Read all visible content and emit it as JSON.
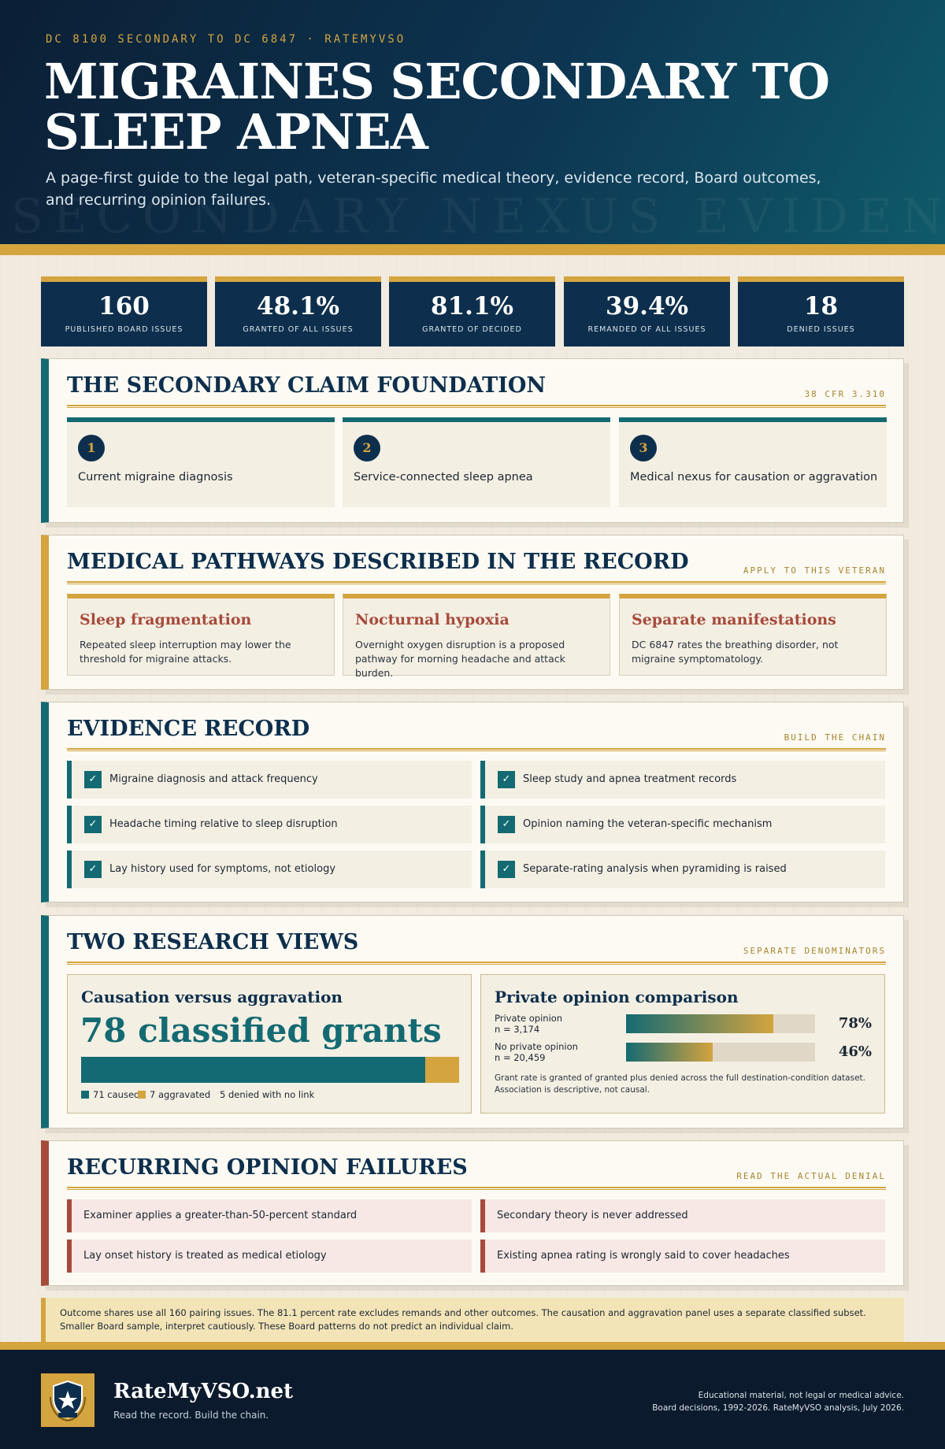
{
  "hero": {
    "kicker": "DC 8100 SECONDARY TO DC 6847 · RATEMYVSO",
    "title": "MIGRAINES SECONDARY TO SLEEP APNEA",
    "subtitle": "A page-first guide to the legal path, veteran-specific medical theory, evidence record, Board outcomes, and recurring opinion failures.",
    "watermark": "SECONDARY NEXUS EVIDENCE"
  },
  "stats": [
    {
      "value": "160",
      "label": "PUBLISHED BOARD ISSUES"
    },
    {
      "value": "48.1%",
      "label": "GRANTED OF ALL ISSUES"
    },
    {
      "value": "81.1%",
      "label": "GRANTED OF DECIDED"
    },
    {
      "value": "39.4%",
      "label": "REMANDED OF ALL ISSUES"
    },
    {
      "value": "18",
      "label": "DENIED ISSUES"
    }
  ],
  "foundation": {
    "title": "THE SECONDARY CLAIM FOUNDATION",
    "tag": "38 CFR 3.310",
    "items": [
      {
        "num": "1",
        "text": "Current migraine diagnosis"
      },
      {
        "num": "2",
        "text": "Service-connected sleep apnea"
      },
      {
        "num": "3",
        "text": "Medical nexus for causation or aggravation"
      }
    ]
  },
  "pathways": {
    "title": "MEDICAL PATHWAYS DESCRIBED IN THE RECORD",
    "tag": "APPLY TO THIS VETERAN",
    "items": [
      {
        "title": "Sleep fragmentation",
        "desc": "Repeated sleep interruption may lower the threshold for migraine attacks."
      },
      {
        "title": "Nocturnal hypoxia",
        "desc": "Overnight oxygen disruption is a proposed pathway for morning headache and attack burden."
      },
      {
        "title": "Separate manifestations",
        "desc": "DC 6847 rates the breathing disorder, not migraine symptomatology."
      }
    ]
  },
  "evidence": {
    "title": "EVIDENCE RECORD",
    "tag": "BUILD THE CHAIN",
    "check_glyph": "✓",
    "items": [
      "Migraine diagnosis and attack frequency",
      "Sleep study and apnea treatment records",
      "Headache timing relative to sleep disruption",
      "Opinion naming the veteran-specific mechanism",
      "Lay history used for symptoms, not etiology",
      "Separate-rating analysis when pyramiding is raised"
    ]
  },
  "research": {
    "title": "TWO RESEARCH VIEWS",
    "tag": "SEPARATE DENOMINATORS",
    "causation": {
      "title": "Causation versus aggravation",
      "big": "78 classified grants",
      "caused": 71,
      "aggravated": 7,
      "legend": [
        "71 caused",
        "7 aggravated",
        "5 denied with no link"
      ]
    },
    "private": {
      "title": "Private opinion comparison",
      "rows": [
        {
          "label": "Private opinion",
          "n": "n = 3,174",
          "pct": 78,
          "value": "78%"
        },
        {
          "label": "No private opinion",
          "n": "n = 20,459",
          "pct": 46,
          "value": "46%"
        }
      ],
      "note": "Grant rate is granted of granted plus denied across the full destination-condition dataset. Association is descriptive, not causal."
    }
  },
  "failures": {
    "title": "RECURRING OPINION FAILURES",
    "tag": "READ THE ACTUAL DENIAL",
    "items": [
      "Examiner applies a greater-than-50-percent standard",
      "Secondary theory is never addressed",
      "Lay onset history is treated as medical etiology",
      "Existing apnea rating is wrongly said to cover headaches"
    ]
  },
  "note": "Outcome shares use all 160 pairing issues. The 81.1 percent rate excludes remands and other outcomes. The causation and aggravation panel uses a separate classified subset. Smaller Board sample, interpret cautiously. These Board patterns do not predict an individual claim.",
  "footer": {
    "logo_icon": "star-shield-icon",
    "brand": "RateMyVSO.net",
    "tagline": "Read the record. Build the chain.",
    "disclaimer1": "Educational material, not legal or medical advice.",
    "disclaimer2": "Board decisions, 1992-2026. RateMyVSO analysis, July 2026."
  },
  "colors": {
    "navy": "#0d2f4d",
    "teal": "#146a72",
    "gold": "#d4a43f",
    "red": "#a64a3c",
    "cream": "#f1ebdf"
  }
}
